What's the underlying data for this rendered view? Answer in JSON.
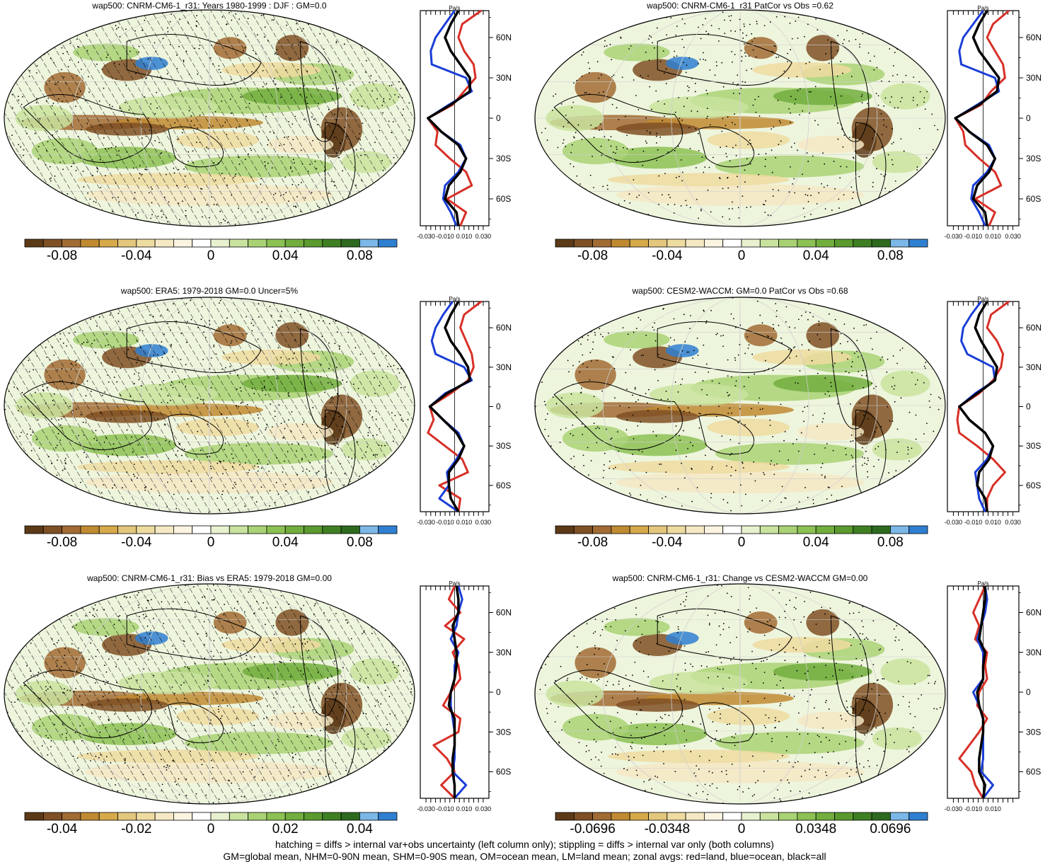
{
  "colors": {
    "palette": [
      "#5c3a17",
      "#7f5025",
      "#a16b34",
      "#c08a32",
      "#d6a94a",
      "#e3c77d",
      "#eedba0",
      "#f5e8c4",
      "#fbf4e1",
      "#ffffff",
      "#e7f1cf",
      "#c9e39e",
      "#a9d274",
      "#8cc154",
      "#72ae3e",
      "#5a9a2e",
      "#3f7f23",
      "#2d6a1f",
      "#7bb8e8",
      "#2f7fd1"
    ],
    "land": "#d73027",
    "ocean": "#1b3ed6",
    "all": "#000000"
  },
  "chart_data": [
    {
      "type": "map",
      "title": "wap500: CNRM-CM6-1_r31: Years 1980-1999 : DJF : GM=0.0",
      "hatching": true,
      "colorbar_ticks": [
        "-0.08",
        "-0.04",
        "0",
        "0.04",
        "0.08"
      ],
      "zonal": {
        "type": "line",
        "units": "Pa/s",
        "xticks": [
          "-0.030",
          "-0.010",
          "0.010",
          "0.030"
        ],
        "yticks": [
          "60N",
          "30N",
          "0",
          "30S",
          "60S"
        ],
        "lat": [
          80,
          70,
          60,
          50,
          40,
          30,
          20,
          10,
          0,
          -10,
          -20,
          -30,
          -40,
          -50,
          -60,
          -70,
          -80
        ],
        "series": [
          {
            "key": "land",
            "values": [
              0.028,
              0.008,
              0.004,
              0.01,
              0.02,
              0.022,
              0.01,
              -0.002,
              -0.028,
              -0.018,
              -0.02,
              -0.005,
              0.012,
              0.018,
              -0.008,
              0.012,
              0.006
            ]
          },
          {
            "key": "ocean",
            "values": [
              0.0,
              -0.01,
              -0.02,
              -0.025,
              -0.024,
              0.012,
              0.018,
              -0.006,
              -0.028,
              -0.014,
              0.006,
              0.012,
              0.004,
              -0.01,
              -0.012,
              -0.004,
              0.002
            ]
          },
          {
            "key": "all",
            "values": [
              0.004,
              -0.004,
              -0.01,
              -0.004,
              0.006,
              0.016,
              0.016,
              -0.004,
              -0.028,
              -0.014,
              0.004,
              0.012,
              0.006,
              -0.006,
              -0.01,
              0.002,
              0.004
            ]
          }
        ]
      }
    },
    {
      "type": "map",
      "title": "wap500: CNRM-CM6-1_r31 PatCor vs Obs =0.62",
      "hatching": false,
      "colorbar_ticks": [
        "-0.08",
        "-0.04",
        "0",
        "0.04",
        "0.08"
      ],
      "zonal": {
        "type": "line",
        "units": "Pa/s",
        "xticks": [
          "-0.030",
          "-0.010",
          "0.010",
          "0.030"
        ],
        "yticks": [
          "60N",
          "30N",
          "0",
          "30S",
          "60S"
        ],
        "lat": [
          80,
          70,
          60,
          50,
          40,
          30,
          20,
          10,
          0,
          -10,
          -20,
          -30,
          -40,
          -50,
          -60,
          -70,
          -80
        ],
        "series": [
          {
            "key": "land",
            "values": [
              0.026,
              0.01,
              0.004,
              0.012,
              0.02,
              0.022,
              0.008,
              -0.002,
              -0.028,
              -0.02,
              -0.018,
              -0.004,
              0.012,
              0.018,
              -0.008,
              0.012,
              0.006
            ]
          },
          {
            "key": "ocean",
            "values": [
              0.0,
              -0.01,
              -0.02,
              -0.024,
              -0.022,
              0.012,
              0.016,
              -0.006,
              -0.028,
              -0.014,
              0.006,
              0.012,
              0.004,
              -0.01,
              -0.012,
              -0.004,
              0.002
            ]
          },
          {
            "key": "all",
            "values": [
              0.004,
              -0.004,
              -0.01,
              -0.004,
              0.006,
              0.016,
              0.014,
              -0.004,
              -0.028,
              -0.014,
              0.004,
              0.012,
              0.006,
              -0.006,
              -0.01,
              0.002,
              0.004
            ]
          }
        ]
      }
    },
    {
      "type": "map",
      "title": "wap500: ERA5: 1979-2018 GM=0.0 Uncer=5%",
      "hatching": true,
      "colorbar_ticks": [
        "-0.08",
        "-0.04",
        "0",
        "0.04",
        "0.08"
      ],
      "zonal": {
        "type": "line",
        "units": "Pa/s",
        "xticks": [
          "-0.030",
          "-0.010",
          "0.010",
          "0.030"
        ],
        "yticks": [
          "60N",
          "30N",
          "0",
          "30S",
          "60S"
        ],
        "lat": [
          80,
          70,
          60,
          50,
          40,
          30,
          20,
          10,
          0,
          -10,
          -20,
          -30,
          -40,
          -50,
          -60,
          -70,
          -80
        ],
        "series": [
          {
            "key": "land",
            "values": [
              0.028,
              0.01,
              0.006,
              0.012,
              0.018,
              0.02,
              0.014,
              -0.004,
              -0.026,
              -0.022,
              -0.028,
              -0.01,
              0.008,
              0.014,
              -0.016,
              0.006,
              0.004
            ]
          },
          {
            "key": "ocean",
            "values": [
              -0.002,
              -0.012,
              -0.02,
              -0.024,
              -0.02,
              0.01,
              0.018,
              -0.01,
              -0.026,
              -0.012,
              0.004,
              0.01,
              0.002,
              -0.008,
              -0.006,
              -0.016,
              0.004
            ]
          },
          {
            "key": "all",
            "values": [
              0.004,
              -0.004,
              -0.01,
              -0.004,
              0.006,
              0.014,
              0.016,
              -0.008,
              -0.026,
              -0.012,
              0.002,
              0.01,
              0.004,
              -0.006,
              -0.006,
              -0.004,
              0.004
            ]
          }
        ]
      }
    },
    {
      "type": "map",
      "title": "wap500: CESM2-WACCM: GM=0.0 PatCor vs Obs =0.68",
      "hatching": false,
      "colorbar_ticks": [
        "-0.08",
        "-0.04",
        "0",
        "0.04",
        "0.08"
      ],
      "zonal": {
        "type": "line",
        "units": "Pa/s",
        "xticks": [
          "-0.030",
          "-0.010",
          "0.010",
          "0.030"
        ],
        "yticks": [
          "60N",
          "30N",
          "0",
          "30S",
          "60S"
        ],
        "lat": [
          80,
          70,
          60,
          50,
          40,
          30,
          20,
          10,
          0,
          -10,
          -20,
          -30,
          -40,
          -50,
          -60,
          -70,
          -80
        ],
        "series": [
          {
            "key": "land",
            "values": [
              0.026,
              0.008,
              0.004,
              0.014,
              0.02,
              0.018,
              0.01,
              -0.004,
              -0.024,
              -0.026,
              -0.024,
              -0.006,
              0.01,
              0.022,
              0.01,
              0.004,
              0.004
            ]
          },
          {
            "key": "ocean",
            "values": [
              -0.002,
              -0.012,
              -0.02,
              -0.022,
              -0.016,
              0.01,
              0.012,
              -0.008,
              -0.024,
              -0.014,
              0.002,
              0.01,
              0.004,
              -0.008,
              -0.006,
              -0.004,
              0.002
            ]
          },
          {
            "key": "all",
            "values": [
              0.004,
              -0.004,
              -0.008,
              -0.002,
              0.006,
              0.014,
              0.012,
              -0.006,
              -0.024,
              -0.014,
              0.002,
              0.01,
              0.006,
              -0.004,
              -0.006,
              0.002,
              0.004
            ]
          }
        ]
      }
    },
    {
      "type": "map",
      "title": "wap500: CNRM-CM6-1_r31: Bias vs ERA5: 1979-2018 GM=0.00",
      "hatching": true,
      "colorbar_ticks": [
        "-0.04",
        "-0.02",
        "0",
        "0.02",
        "0.04"
      ],
      "zonal": {
        "type": "line",
        "units": "Pa/s",
        "xticks": [
          "-0.030",
          "-0.010",
          "0.010",
          "0.030"
        ],
        "yticks": [
          "60N",
          "30N",
          "0",
          "30S",
          "60S"
        ],
        "lat": [
          80,
          70,
          60,
          50,
          40,
          30,
          20,
          10,
          0,
          -10,
          -20,
          -30,
          -40,
          -50,
          -60,
          -70,
          -80
        ],
        "series": [
          {
            "key": "land",
            "values": [
              0.0,
              -0.006,
              0.006,
              -0.01,
              0.01,
              -0.002,
              0.004,
              0.006,
              -0.004,
              -0.012,
              0.006,
              0.004,
              -0.022,
              -0.008,
              0.0,
              -0.014,
              0.0
            ]
          },
          {
            "key": "ocean",
            "values": [
              0.004,
              0.008,
              0.004,
              0.002,
              -0.004,
              0.004,
              0.0,
              0.0,
              -0.004,
              -0.004,
              -0.002,
              0.0,
              0.0,
              0.0,
              -0.002,
              0.012,
              0.0
            ]
          },
          {
            "key": "all",
            "values": [
              0.002,
              0.004,
              0.004,
              -0.002,
              0.0,
              0.002,
              0.002,
              0.0,
              -0.004,
              -0.006,
              0.0,
              0.0,
              0.0,
              -0.002,
              -0.002,
              0.0,
              0.0
            ]
          }
        ]
      }
    },
    {
      "type": "map",
      "title": "wap500: CNRM-CM6-1_r31: Change vs CESM2-WACCM GM=0.00",
      "hatching": false,
      "colorbar_ticks": [
        "-0.0696",
        "-0.0348",
        "0",
        "0.0348",
        "0.0696"
      ],
      "zonal": {
        "type": "line",
        "units": "Pa/s",
        "xticks": [
          "-0.030",
          "-0.010",
          "0.010"
        ],
        "yticks": [
          "60N",
          "30N",
          "0",
          "30S",
          "60S"
        ],
        "lat": [
          80,
          70,
          60,
          50,
          40,
          30,
          20,
          10,
          0,
          -10,
          -20,
          -30,
          -40,
          -50,
          -60,
          -70,
          -80
        ],
        "series": [
          {
            "key": "land",
            "values": [
              0.002,
              -0.004,
              -0.01,
              -0.004,
              -0.008,
              0.004,
              0.002,
              0.004,
              -0.004,
              -0.006,
              0.004,
              -0.004,
              -0.014,
              -0.024,
              -0.012,
              -0.008,
              0.0
            ]
          },
          {
            "key": "ocean",
            "values": [
              0.002,
              0.004,
              0.002,
              -0.002,
              -0.006,
              0.0,
              0.0,
              0.0,
              -0.01,
              -0.004,
              0.0,
              0.0,
              0.0,
              0.0,
              -0.002,
              0.01,
              0.0
            ]
          },
          {
            "key": "all",
            "values": [
              0.002,
              0.002,
              0.0,
              -0.002,
              -0.004,
              0.002,
              0.0,
              0.0,
              -0.006,
              -0.004,
              0.0,
              0.0,
              -0.002,
              -0.004,
              -0.004,
              0.002,
              0.0
            ]
          }
        ]
      }
    }
  ],
  "footer": {
    "line1": "hatching = diffs > internal var+obs uncertainty (left column only); stippling = diffs > internal var only (both columns)",
    "line2": "GM=global mean, NHM=0-90N mean, SHM=0-90S mean, OM=ocean mean, LM=land mean; zonal avgs: red=land, blue=ocean, black=all"
  }
}
